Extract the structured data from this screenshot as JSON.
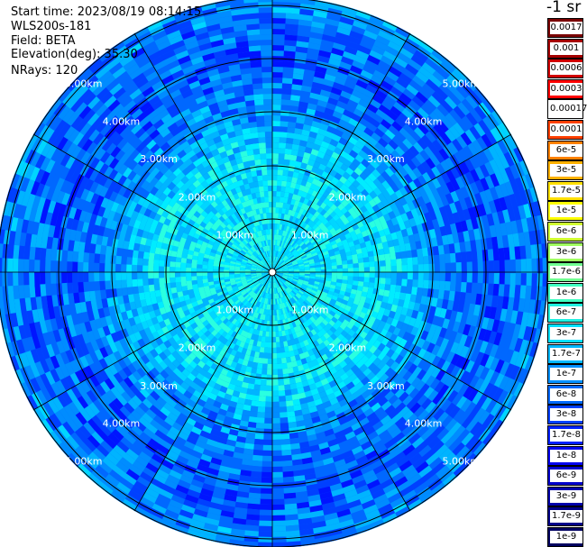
{
  "info": {
    "start_time": "Start time: 2023/08/19 08:14:15",
    "instrument": "WLS200s-181",
    "field": "Field: BETA",
    "elevation": "Elevation(deg): 35.30",
    "nrays": "NRays: 120"
  },
  "colorbar": {
    "unit": "-1 sr",
    "levels": [
      {
        "label": "0.0017",
        "color": "#7a0000"
      },
      {
        "label": "0.001",
        "color": "#a50000"
      },
      {
        "label": "0.0006",
        "color": "#d00000"
      },
      {
        "label": "0.0003",
        "color": "#ff0000"
      },
      {
        "label": "0.00017",
        "color": "#ffffff"
      },
      {
        "label": "0.0001",
        "color": "#ff4000"
      },
      {
        "label": "6e-5",
        "color": "#ff8000"
      },
      {
        "label": "3e-5",
        "color": "#ffb000"
      },
      {
        "label": "1.7e-5",
        "color": "#ffe000"
      },
      {
        "label": "1e-5",
        "color": "#ffff00"
      },
      {
        "label": "6e-6",
        "color": "#d0ff30"
      },
      {
        "label": "3e-6",
        "color": "#a0ff60"
      },
      {
        "label": "1.7e-6",
        "color": "#70ff90"
      },
      {
        "label": "1e-6",
        "color": "#40ffc0"
      },
      {
        "label": "6e-7",
        "color": "#20f0e0"
      },
      {
        "label": "3e-7",
        "color": "#00e0ff"
      },
      {
        "label": "1.7e-7",
        "color": "#00b8ff"
      },
      {
        "label": "1e-7",
        "color": "#0090ff"
      },
      {
        "label": "6e-8",
        "color": "#0068ff"
      },
      {
        "label": "3e-8",
        "color": "#0040ff"
      },
      {
        "label": "1.7e-8",
        "color": "#0020ff"
      },
      {
        "label": "1e-8",
        "color": "#0000ee"
      },
      {
        "label": "6e-9",
        "color": "#0000cc"
      },
      {
        "label": "3e-9",
        "color": "#0000aa"
      },
      {
        "label": "1.7e-9",
        "color": "#000088"
      },
      {
        "label": "1e-9",
        "color": "#000060"
      }
    ]
  },
  "ppi": {
    "rays": 120,
    "range_rings": [
      "1.00km",
      "2.00km",
      "3.00km",
      "4.00km",
      "5.00km"
    ]
  }
}
